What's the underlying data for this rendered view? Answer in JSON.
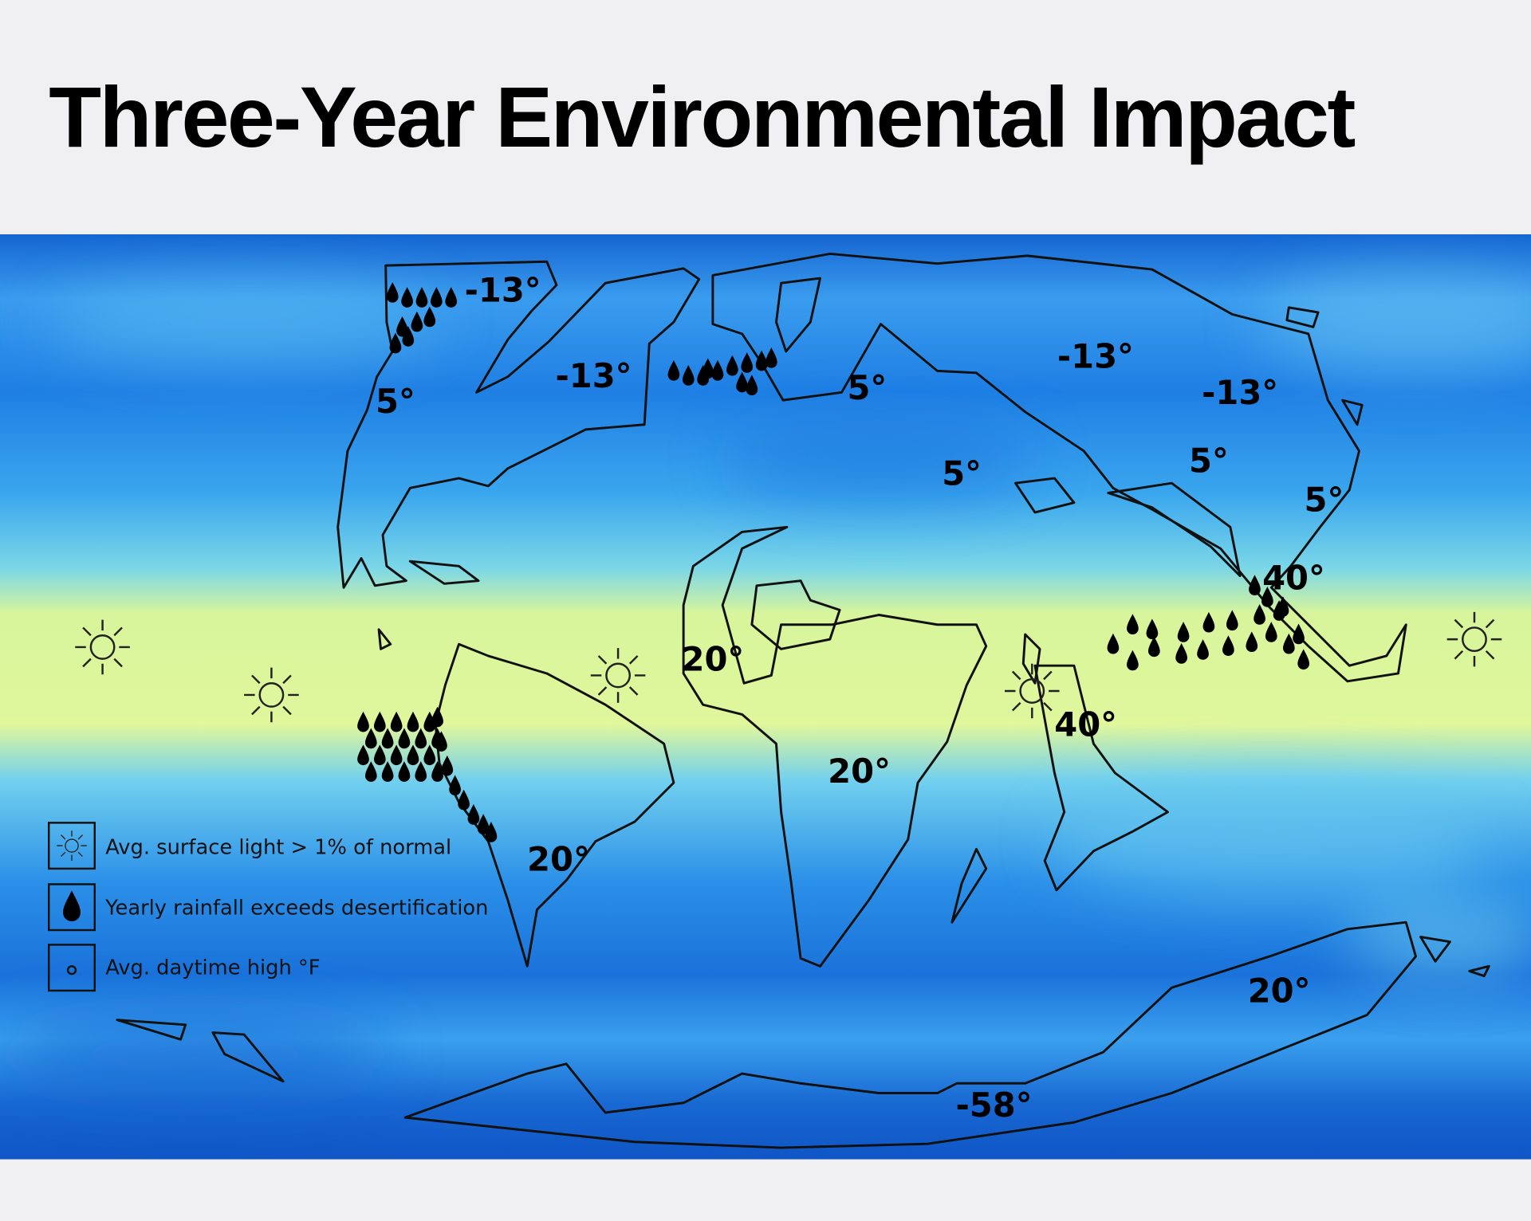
{
  "title": "Three-Year Environmental Impact",
  "legend": [
    "Avg. surface light > 1% of normal",
    "Yearly rainfall exceeds desertification",
    "Avg. daytime high °F"
  ],
  "temperatures": [
    "-13°",
    "-13°",
    "5°",
    "-13°",
    "-13°",
    "5°",
    "5°",
    "5°",
    "5°",
    "40°",
    "20°",
    "40°",
    "20°",
    "20°",
    "20°",
    "-58°"
  ]
}
